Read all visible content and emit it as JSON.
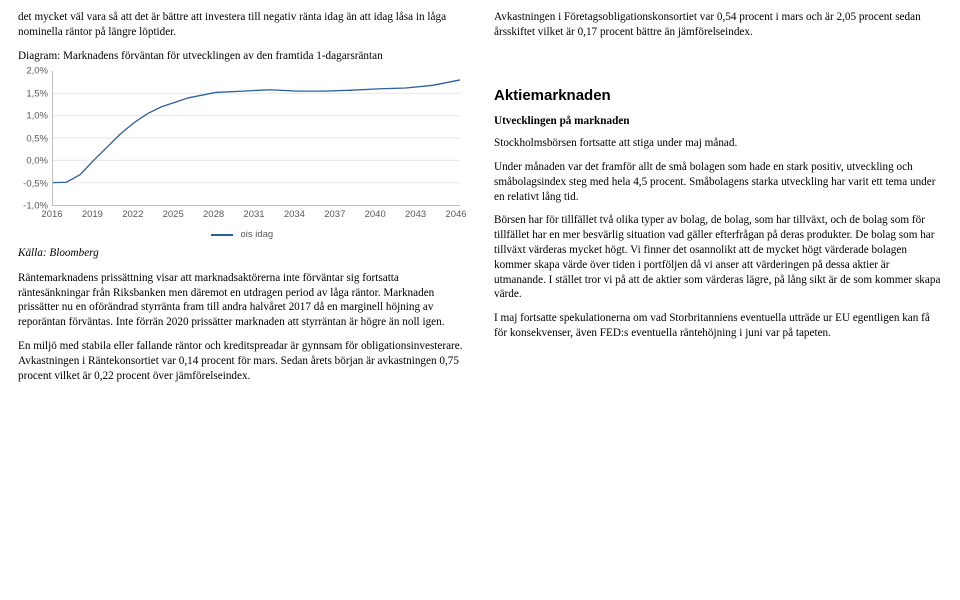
{
  "left": {
    "p1": "det mycket väl vara så att det är bättre att investera till negativ ränta idag än att idag låsa in låga nominella räntor på längre löptider.",
    "chart_title": "Diagram: Marknadens förväntan för utvecklingen av den framtida 1-dagarsräntan",
    "source": "Källa: Bloomberg",
    "p2": "Räntemarknadens prissättning visar att marknadsaktörerna inte förväntar sig fortsatta räntesänkningar från Riksbanken men däremot en utdragen period av låga räntor. Marknaden prissätter nu en oförändrad styrränta fram till andra halvåret 2017 då en marginell höjning av reporäntan förväntas. Inte förrän 2020 prissätter marknaden att styrräntan är högre än noll igen.",
    "p3": "En miljö med stabila eller fallande räntor och kreditspreadar är gynnsam för obligationsinvesterare. Avkastningen i Räntekonsortiet var 0,14 procent för mars. Sedan årets början är avkastningen 0,75 procent vilket är 0,22 procent över jämförelseindex."
  },
  "right": {
    "p1": "Avkastningen i Företagsobligationskonsortiet var 0,54 procent i mars och är 2,05 procent sedan årsskiftet vilket är 0,17 procent bättre än jämförelseindex.",
    "section": "Aktiemarknaden",
    "sub": "Utvecklingen på marknaden",
    "p2": "Stockholmsbörsen fortsatte att stiga under maj månad.",
    "p3": "Under månaden var det framför allt de små bolagen som hade en stark positiv, utveckling och småbolagsindex steg med hela 4,5 procent. Småbolagens starka utveckling har varit ett tema under en relativt lång tid.",
    "p4": "Börsen har för tillfället två olika typer av bolag, de bolag, som har tillväxt, och de bolag som för tillfället har en mer besvärlig situation vad gäller efterfrågan på deras produkter. De bolag som har tillväxt värderas mycket högt. Vi finner det osannolikt att de mycket högt värderade bolagen kommer skapa värde över tiden i portföljen då vi anser att värderingen på dessa aktier är utmanande. I stället tror vi på att de aktier som värderas lägre, på lång sikt är de som kommer skapa värde.",
    "p5": "I maj fortsatte spekulationerna om vad Storbritanniens eventuella utträde ur EU egentligen kan få för konsekvenser, även FED:s eventuella räntehöjning i juni var på tapeten."
  },
  "chart": {
    "type": "line",
    "ylim": [
      -1.0,
      2.0
    ],
    "yticks": [
      "2,0%",
      "1,5%",
      "1,0%",
      "0,5%",
      "0,0%",
      "-0,5%",
      "-1,0%"
    ],
    "xticks": [
      "2016",
      "2019",
      "2022",
      "2025",
      "2028",
      "2031",
      "2034",
      "2037",
      "2040",
      "2043",
      "2046"
    ],
    "series_label": "ois idag",
    "line_color": "#2e5f9e",
    "grid_color": "#e6e6e6",
    "axis_color": "#bfbfbf",
    "background_color": "#ffffff",
    "points": [
      [
        2016,
        -0.5
      ],
      [
        2017,
        -0.49
      ],
      [
        2018,
        -0.32
      ],
      [
        2019,
        0.0
      ],
      [
        2020,
        0.3
      ],
      [
        2021,
        0.6
      ],
      [
        2022,
        0.85
      ],
      [
        2023,
        1.05
      ],
      [
        2024,
        1.2
      ],
      [
        2025,
        1.3
      ],
      [
        2026,
        1.4
      ],
      [
        2028,
        1.52
      ],
      [
        2030,
        1.55
      ],
      [
        2032,
        1.58
      ],
      [
        2034,
        1.55
      ],
      [
        2036,
        1.55
      ],
      [
        2038,
        1.57
      ],
      [
        2040,
        1.6
      ],
      [
        2042,
        1.62
      ],
      [
        2044,
        1.68
      ],
      [
        2046,
        1.8
      ]
    ]
  }
}
